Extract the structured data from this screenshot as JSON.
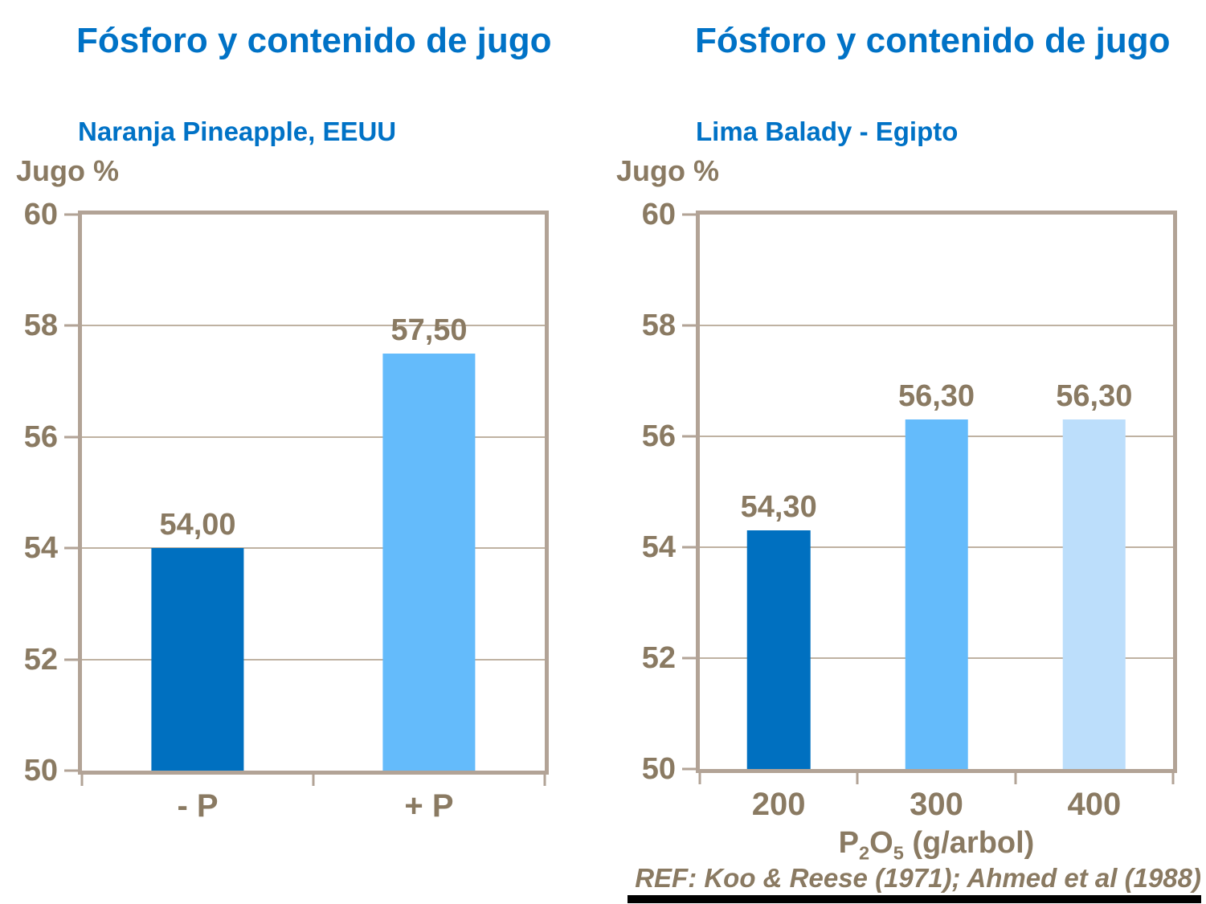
{
  "slide": {
    "background": "#FFFFFF",
    "footer_reference": "REF: Koo & Reese (1971); Ahmed et al (1988)",
    "text_colors": {
      "title_blue": "#0072C6",
      "axis_brown": "#8a7a62"
    },
    "frame_color": "#b2a396"
  },
  "chart_data": [
    {
      "type": "bar",
      "title": "Fósforo y contenido de jugo",
      "subtitle": "Naranja Pineapple, EEUU",
      "ylabel": "Jugo %",
      "xlabel": "",
      "categories": [
        "- P",
        "+ P"
      ],
      "values": [
        54.0,
        57.5
      ],
      "value_labels": [
        "54,00",
        "57,50"
      ],
      "ylim": [
        50,
        60
      ],
      "yticks": [
        50,
        52,
        54,
        56,
        58,
        60
      ],
      "bar_colors": [
        "#0070C0",
        "#64BBFB"
      ],
      "grid": true,
      "legend": null
    },
    {
      "type": "bar",
      "title": "Fósforo y contenido de jugo",
      "subtitle": "Lima Balady - Egipto",
      "ylabel": "Jugo %",
      "xlabel": "P2O5 (g/arbol)",
      "xlabel_parts": [
        [
          "P",
          0
        ],
        [
          "2",
          1
        ],
        [
          "O",
          0
        ],
        [
          "5",
          1
        ],
        [
          " (g/arbol)",
          0
        ]
      ],
      "categories": [
        "200",
        "300",
        "400"
      ],
      "values": [
        54.3,
        56.3,
        56.3
      ],
      "value_labels": [
        "54,30",
        "56,30",
        "56,30"
      ],
      "ylim": [
        50,
        60
      ],
      "yticks": [
        50,
        52,
        54,
        56,
        58,
        60
      ],
      "bar_colors": [
        "#0070C0",
        "#64BBFB",
        "#BCDEFB"
      ],
      "grid": true,
      "legend": null
    }
  ]
}
